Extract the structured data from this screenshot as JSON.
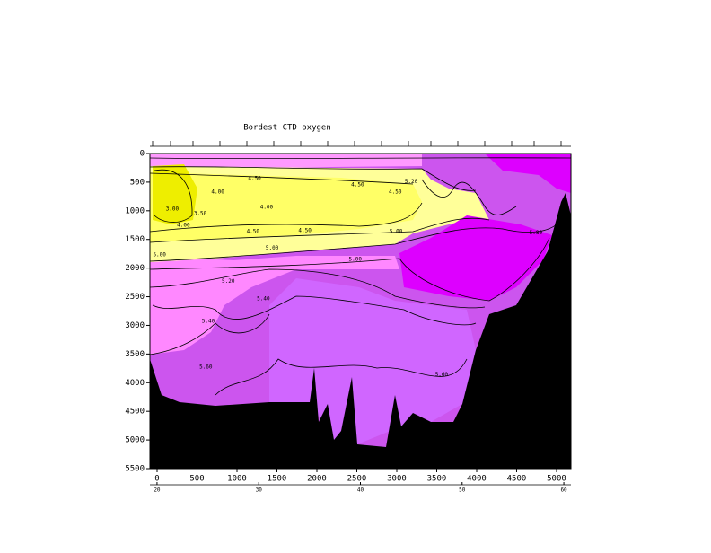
{
  "chart_data": {
    "type": "contour",
    "title": "Bordest CTD oxygen",
    "xlim": [
      -90,
      5180
    ],
    "xticks": [
      0,
      500,
      1000,
      1500,
      2000,
      2500,
      3000,
      3500,
      4000,
      4500,
      5000
    ],
    "ylim": [
      0,
      5500
    ],
    "yticks": [
      0,
      500,
      1000,
      1500,
      2000,
      2500,
      3000,
      3500,
      4000,
      4500,
      5000,
      5500
    ],
    "x2lim": [
      19.3,
      60.7
    ],
    "x2ticks": [
      20,
      30,
      40,
      50,
      60
    ],
    "annotations": [
      {
        "text": "4.50",
        "x": 1220,
        "y": 440
      },
      {
        "text": "4.00",
        "x": 760,
        "y": 670
      },
      {
        "text": "3.50",
        "x": 540,
        "y": 1050
      },
      {
        "text": "3.00",
        "x": 190,
        "y": 970
      },
      {
        "text": "4.00",
        "x": 330,
        "y": 1250
      },
      {
        "text": "4.00",
        "x": 1370,
        "y": 940
      },
      {
        "text": "4.50",
        "x": 1200,
        "y": 1360
      },
      {
        "text": "4.50",
        "x": 1850,
        "y": 1350
      },
      {
        "text": "4.50",
        "x": 2510,
        "y": 550
      },
      {
        "text": "4.50",
        "x": 2980,
        "y": 670
      },
      {
        "text": "5.20",
        "x": 3180,
        "y": 490
      },
      {
        "text": "5.00",
        "x": 2990,
        "y": 1360
      },
      {
        "text": "5.00",
        "x": 1440,
        "y": 1650
      },
      {
        "text": "5.00",
        "x": 30,
        "y": 1770
      },
      {
        "text": "5.00",
        "x": 2480,
        "y": 1850
      },
      {
        "text": "5.20",
        "x": 890,
        "y": 2230
      },
      {
        "text": "5.40",
        "x": 1330,
        "y": 2540
      },
      {
        "text": "5.40",
        "x": 640,
        "y": 2930
      },
      {
        "text": "5.60",
        "x": 610,
        "y": 3730
      },
      {
        "text": "5.60",
        "x": 3560,
        "y": 3860
      },
      {
        "text": "5.80",
        "x": 4740,
        "y": 1390
      }
    ]
  }
}
